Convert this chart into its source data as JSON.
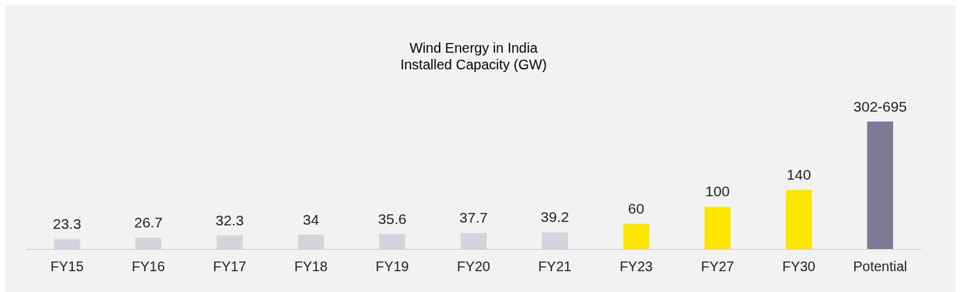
{
  "chart_data": {
    "type": "bar",
    "title": [
      "Wind Energy in India",
      "Installed Capacity (GW)"
    ],
    "categories": [
      "FY15",
      "FY16",
      "FY17",
      "FY18",
      "FY19",
      "FY20",
      "FY21",
      "FY23",
      "FY27",
      "FY30",
      "Potential"
    ],
    "values": [
      23.3,
      26.7,
      32.3,
      34,
      35.6,
      37.7,
      39.2,
      60,
      100,
      140,
      302
    ],
    "value_labels": [
      "23.3",
      "26.7",
      "32.3",
      "34",
      "35.6",
      "37.7",
      "39.2",
      "60",
      "100",
      "140",
      "302-695"
    ],
    "colors": [
      "#d4d4dc",
      "#d4d4dc",
      "#d4d4dc",
      "#d4d4dc",
      "#d4d4dc",
      "#d4d4dc",
      "#d4d4dc",
      "#ffe600",
      "#ffe600",
      "#ffe600",
      "#7c7a94"
    ],
    "grid": false,
    "legend": false,
    "tick_labels": "x"
  }
}
